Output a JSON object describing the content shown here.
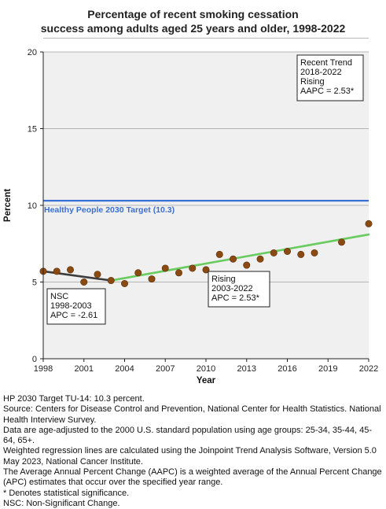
{
  "chart_data": {
    "type": "line",
    "title_lines": [
      "Percentage of recent smoking cessation",
      "success among adults aged 25 years and older, 1998-2022"
    ],
    "xlabel": "Year",
    "ylabel": "Percent",
    "xlim": [
      1998,
      2022
    ],
    "ylim": [
      0,
      20
    ],
    "x_ticks": [
      1998,
      2001,
      2004,
      2007,
      2010,
      2013,
      2016,
      2019,
      2022
    ],
    "y_ticks": [
      0,
      5,
      10,
      15,
      20
    ],
    "grid": "horizontal",
    "target": {
      "label": "Healthy People 2030 Target (10.3)",
      "value": 10.3,
      "color": "#3b6fd6"
    },
    "points": {
      "color": "#8b4a12",
      "x": [
        1998,
        1999,
        2000,
        2001,
        2002,
        2003,
        2004,
        2005,
        2006,
        2007,
        2008,
        2009,
        2010,
        2011,
        2012,
        2013,
        2014,
        2015,
        2016,
        2017,
        2018,
        2020,
        2022
      ],
      "y": [
        5.7,
        5.7,
        5.8,
        5.0,
        5.5,
        5.1,
        4.9,
        5.6,
        5.2,
        5.9,
        5.6,
        5.9,
        5.8,
        6.8,
        6.5,
        6.1,
        6.5,
        6.9,
        7.0,
        6.8,
        6.9,
        7.6,
        8.8
      ]
    },
    "trend_segments": [
      {
        "x": [
          1998,
          2003
        ],
        "y": [
          5.7,
          5.1
        ],
        "color": "#3d3d3d"
      },
      {
        "x": [
          2003,
          2022
        ],
        "y": [
          5.1,
          8.1
        ],
        "color": "#6acb61"
      }
    ],
    "annotations": [
      {
        "id": "nsc",
        "lines": [
          "NSC",
          "1998-2003",
          "APC = -2.61"
        ]
      },
      {
        "id": "rising",
        "lines": [
          "Rising",
          "2003-2022",
          "APC =  2.53*"
        ]
      },
      {
        "id": "recent",
        "lines": [
          "Recent Trend",
          "2018-2022",
          "Rising",
          "AAPC =  2.53*"
        ]
      }
    ]
  },
  "footnotes": [
    "HP 2030 Target TU-14: 10.3 percent.",
    "Source: Centers for Disease Control and Prevention, National Center for Health Statistics. National Health Interview Survey.",
    "Data are age-adjusted to the 2000 U.S. standard population using age groups: 25-34, 35-44, 45-64, 65+.",
    "Weighted regression lines are calculated using the Joinpoint Trend Analysis Software, Version 5.0 May 2023, National Cancer Institute.",
    "The Average Annual Percent Change (AAPC) is a weighted average of the Annual Percent Change (APC) estimates that occur over the specified year range.",
    "* Denotes statistical significance.",
    "NSC: Non-Significant Change."
  ]
}
